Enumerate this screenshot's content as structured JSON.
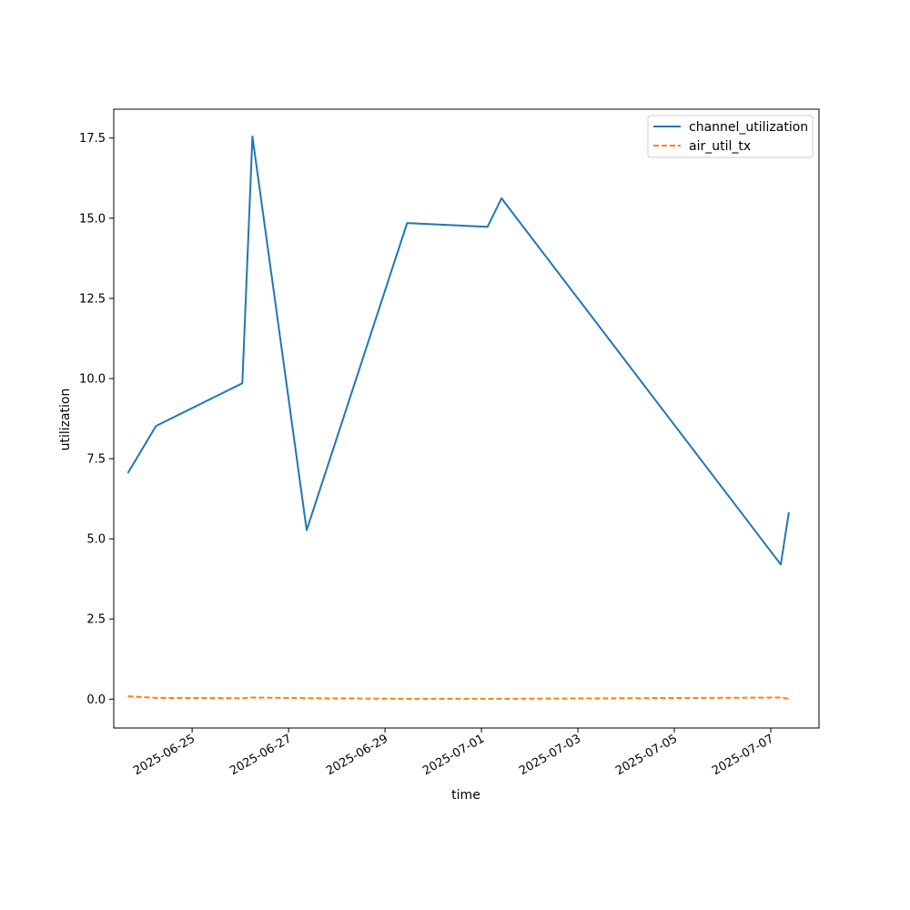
{
  "chart_data": {
    "type": "line",
    "title": "",
    "xlabel": "time",
    "ylabel": "utilization",
    "xlim": [
      "2025-06-23T09:00",
      "2025-07-08T00:00"
    ],
    "ylim": [
      -0.9,
      18.4
    ],
    "x_ticks": [
      "2025-06-25",
      "2025-06-27",
      "2025-06-29",
      "2025-07-01",
      "2025-07-03",
      "2025-07-05",
      "2025-07-07"
    ],
    "y_ticks": [
      0.0,
      2.5,
      5.0,
      7.5,
      10.0,
      12.5,
      15.0,
      17.5
    ],
    "y_tick_labels": [
      "0.0",
      "2.5",
      "5.0",
      "7.5",
      "10.0",
      "12.5",
      "15.0",
      "17.5"
    ],
    "grid": false,
    "legend_position": "top-right",
    "series": [
      {
        "name": "channel_utilization",
        "color": "#1f77b4",
        "style": "solid",
        "points": [
          {
            "x": "2025-06-23T16:00",
            "y": 7.05
          },
          {
            "x": "2025-06-24T06:00",
            "y": 8.52
          },
          {
            "x": "2025-06-26T01:00",
            "y": 9.85
          },
          {
            "x": "2025-06-26T06:00",
            "y": 17.55
          },
          {
            "x": "2025-06-27T09:00",
            "y": 5.27
          },
          {
            "x": "2025-06-29T11:00",
            "y": 14.85
          },
          {
            "x": "2025-07-01T03:00",
            "y": 14.73
          },
          {
            "x": "2025-07-01T10:00",
            "y": 15.62
          },
          {
            "x": "2025-07-07T05:00",
            "y": 4.2
          },
          {
            "x": "2025-07-07T09:00",
            "y": 5.83
          }
        ]
      },
      {
        "name": "air_util_tx",
        "color": "#ff7f0e",
        "style": "dashed",
        "points": [
          {
            "x": "2025-06-23T16:00",
            "y": 0.09
          },
          {
            "x": "2025-06-24T06:00",
            "y": 0.04
          },
          {
            "x": "2025-06-26T01:00",
            "y": 0.03
          },
          {
            "x": "2025-06-26T06:00",
            "y": 0.05
          },
          {
            "x": "2025-06-27T09:00",
            "y": 0.03
          },
          {
            "x": "2025-06-29T11:00",
            "y": 0.01
          },
          {
            "x": "2025-07-01T03:00",
            "y": 0.01
          },
          {
            "x": "2025-07-01T10:00",
            "y": 0.01
          },
          {
            "x": "2025-07-07T05:00",
            "y": 0.05
          },
          {
            "x": "2025-07-07T09:00",
            "y": 0.01
          }
        ]
      }
    ]
  }
}
